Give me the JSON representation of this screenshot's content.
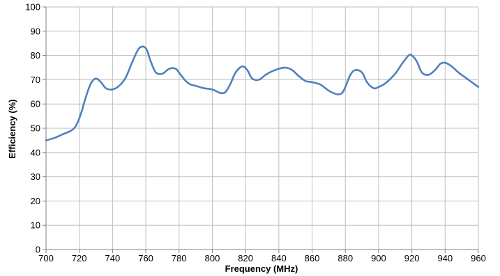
{
  "chart_data": {
    "type": "line",
    "title": "",
    "xlabel": "Frequency (MHz)",
    "ylabel": "Efficiency (%)",
    "xlim": [
      700,
      960
    ],
    "ylim": [
      0,
      100
    ],
    "x_ticks": [
      700,
      720,
      740,
      760,
      780,
      800,
      820,
      840,
      860,
      880,
      900,
      920,
      940,
      960
    ],
    "y_ticks": [
      0,
      10,
      20,
      30,
      40,
      50,
      60,
      70,
      80,
      90,
      100
    ],
    "grid": true,
    "legend": "none",
    "series": [
      {
        "color": "#4f81bd",
        "x": [
          700,
          705,
          710,
          715,
          718,
          721,
          724,
          727,
          730,
          733,
          736,
          740,
          744,
          748,
          752,
          756,
          760,
          763,
          766,
          770,
          774,
          778,
          781,
          784,
          787,
          790,
          795,
          800,
          805,
          808,
          811,
          814,
          818,
          821,
          824,
          828,
          832,
          836,
          840,
          844,
          848,
          852,
          856,
          860,
          865,
          870,
          875,
          878,
          880,
          883,
          886,
          890,
          893,
          897,
          900,
          904,
          910,
          914,
          918,
          920,
          923,
          926,
          930,
          934,
          937,
          940,
          944,
          948,
          952,
          956,
          960
        ],
        "y": [
          45,
          46,
          47.5,
          49,
          51,
          56,
          63,
          68.5,
          70.5,
          69,
          66.5,
          66,
          67.5,
          71,
          77.5,
          83,
          83,
          77.5,
          73,
          72.5,
          74.5,
          74.5,
          72,
          69.5,
          68,
          67.5,
          66.5,
          66,
          64.5,
          65,
          68.5,
          73,
          75.5,
          74,
          70.5,
          70,
          72,
          73.5,
          74.5,
          75,
          74,
          71.5,
          69.5,
          69,
          68,
          65.5,
          64,
          64.5,
          67,
          72,
          74,
          73,
          69,
          66.5,
          67,
          68.5,
          72.5,
          76.5,
          80,
          80,
          77.5,
          73,
          72,
          74,
          76.5,
          77,
          75.5,
          73,
          71,
          69,
          67
        ]
      }
    ]
  }
}
